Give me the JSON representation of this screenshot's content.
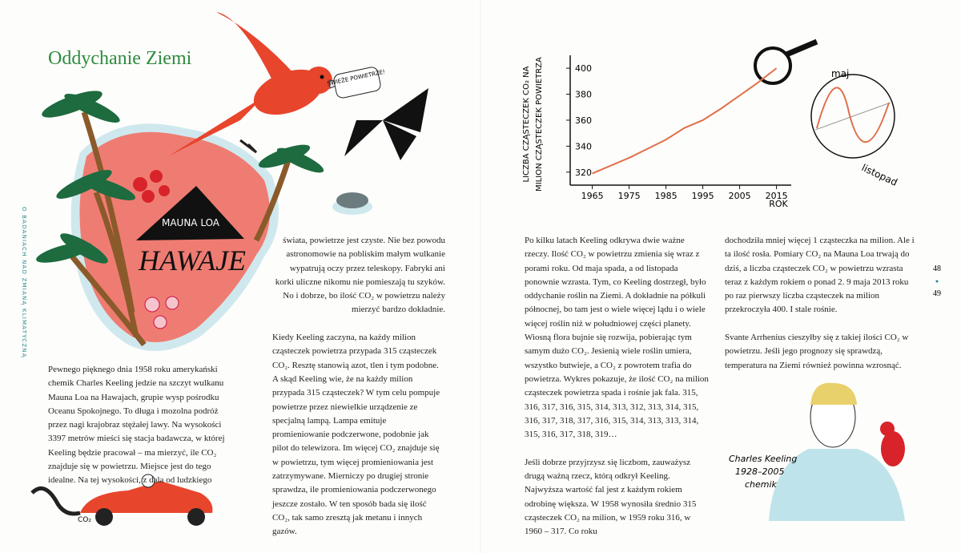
{
  "side_text": "O BADANIACH NAD ZMIANĄ KLIMATYCZNĄ",
  "left_page": {
    "title": "Oddychanie Ziemi",
    "column_1": [
      "Pewnego pięknego dnia 1958 roku amerykański chemik Charles Keeling jedzie na szczyt wulkanu Mauna Loa na Hawajach, grupie wysp pośrodku Oceanu Spokojnego. To długa i mozolna podróż przez nagi krajobraz stężałej lawy. Na wysokości 3397 metrów mieści się stacja badawcza, w której Keeling będzie pracował – ma mierzyć, ile CO₂ znajduje się w powietrzu. Miejsce jest do tego idealne. Na tej wysokości, z dala od ludzkiego"
    ],
    "column_2": [
      "świata, powietrze jest czyste. Nie bez powodu astronomowie na pobliskim małym wulkanie wypatrują oczy przez teleskopy. Fabryki ani korki uliczne nikomu nie pomieszają tu szyków. No i dobrze, bo ilość CO₂ w powietrzu należy mierzyć bardzo dokładnie.",
      "Kiedy Keeling zaczyna, na każdy milion cząsteczek powietrza przypada 315 cząsteczek CO₂. Resztę stanowią azot, tlen i tym podobne. A skąd Keeling wie, że na każdy milion przypada 315 cząsteczek? W tym celu pompuje powietrze przez niewielkie urządzenie ze specjalną lampą. Lampa emituje promieniowanie podczerwone, podobnie jak pilot do telewizora. Im więcej CO₂ znajduje się w powietrzu, tym więcej promieniowania jest zatrzymywane. Mierniczy po drugiej stronie sprawdza, ile promieniowania podczerwonego jeszcze zostało. W ten sposób bada się ilość CO₂, tak samo zresztą jak metanu i innych gazów."
    ],
    "illustration_labels": {
      "volcano": "MAUNA LOA",
      "island": "HAWAJE",
      "speech": "ŚWIEŻE POWIETRZE!",
      "exhaust": "CO₂"
    }
  },
  "right_page": {
    "column_1": [
      "Po kilku latach Keeling odkrywa dwie ważne rzeczy. Ilość CO₂ w powietrzu zmienia się wraz z porami roku. Od maja spada, a od listopada ponownie wzrasta. Tym, co Keeling dostrzegł, było oddychanie roślin na Ziemi. A dokładnie na półkuli północnej, bo tam jest o wiele więcej lądu i o wiele więcej roślin niż w południowej części planety. Wiosną flora bujnie się rozwija, pobierając tym samym dużo CO₂. Jesienią wiele roślin umiera, wszystko butwieje, a CO₂ z powrotem trafia do powietrza. Wykres pokazuje, że ilość CO₂ na milion cząsteczek powietrza spada i rośnie jak fala. 315, 316, 317, 316, 315, 314, 313, 312, 313, 314, 315, 316, 317, 318, 317, 316, 315, 314, 313, 313, 314, 315, 316, 317, 318, 319…",
      "Jeśli dobrze przyjrzysz się liczbom, zauważysz drugą ważną rzecz, którą odkrył Keeling. Najwyższa wartość fal jest z każdym rokiem odrobinę większa. W 1958 wynosiła średnio 315 cząsteczek CO₂ na milion, w 1959 roku 316, w 1960 – 317. Co roku"
    ],
    "column_2": [
      "dochodziła mniej więcej 1 cząsteczka na milion. Ale i ta ilość rosła. Pomiary CO₂ na Mauna Loa trwają do dziś, a liczba cząsteczek CO₂ w powietrzu wzrasta teraz z każdym rokiem o ponad 2. 9 maja 2013 roku po raz pierwszy liczba cząsteczek na milion przekroczyła 400. I stale rośnie.",
      "Svante Arrhenius cieszyłby się z takiej ilości CO₂ w powietrzu. Jeśli jego prognozy się sprawdzą, temperatura na Ziemi również powinna wzrosnąć."
    ],
    "season_labels": {
      "may": "maj",
      "november": "listopad"
    },
    "portrait_caption": [
      "Charles Keeling",
      "1928–2005",
      "chemik"
    ]
  },
  "page_numbers": [
    "48",
    "49"
  ],
  "chart_data": {
    "type": "line",
    "ylabel": [
      "LICZBA CZĄSTECZEK CO₂ NA",
      "MILION CZĄSTECZEK POWIETRZA"
    ],
    "xlabel": "ROK",
    "x": [
      1965,
      1970,
      1975,
      1980,
      1985,
      1990,
      1995,
      2000,
      2005,
      2010,
      2015
    ],
    "values": [
      319,
      325,
      331,
      338,
      345,
      354,
      360,
      369,
      379,
      389,
      400
    ],
    "color": "#e0704a",
    "xlim": [
      1959,
      2019
    ],
    "ylim": [
      310,
      405
    ],
    "xticks": [
      1965,
      1975,
      1985,
      1995,
      2005,
      2015
    ],
    "yticks": [
      320,
      340,
      360,
      380,
      400
    ]
  }
}
